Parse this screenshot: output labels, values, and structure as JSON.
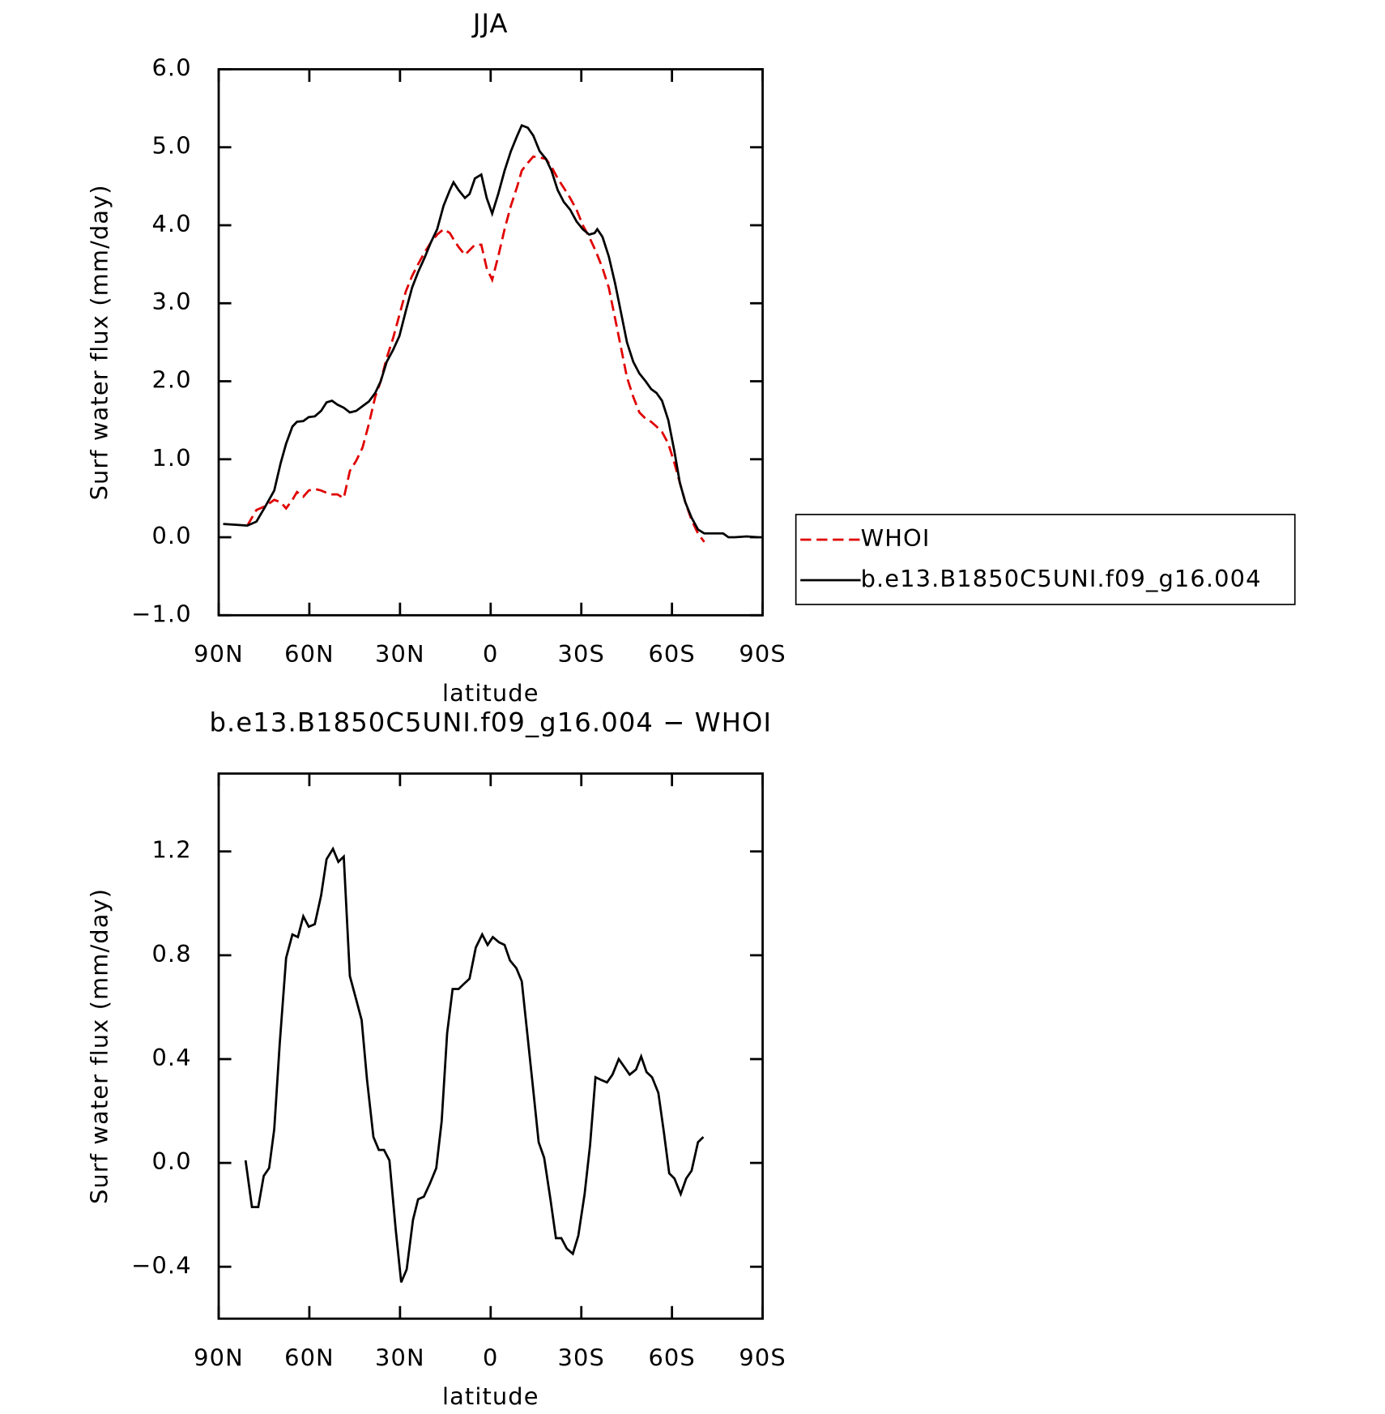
{
  "chart_data": [
    {
      "type": "line",
      "title": "JJA",
      "x_label": "latitude",
      "y_label": "Surf water flux (mm/day)",
      "x": [
        88.5,
        84.3,
        80.5,
        77.5,
        74.5,
        71.6,
        69.5,
        67.7,
        65.6,
        64.1,
        62,
        60.2,
        58.2,
        56.1,
        54.3,
        52.5,
        50.7,
        48.6,
        46.6,
        44.5,
        42.4,
        40.3,
        38.2,
        36.4,
        34.4,
        32.3,
        30.2,
        28.1,
        26,
        24,
        21.9,
        19.8,
        17.7,
        15.6,
        13.5,
        12.3,
        10.6,
        8.5,
        7,
        5.2,
        3.1,
        1.3,
        -0.5,
        -2.5,
        -4.6,
        -6.7,
        -8.8,
        -10.3,
        -12.3,
        -14.1,
        -16.2,
        -18.3,
        -20.1,
        -22.2,
        -24.2,
        -26.3,
        -28.4,
        -30.5,
        -32.6,
        -34.4,
        -35.3,
        -37,
        -39.1,
        -41.2,
        -43.3,
        -45.1,
        -47.2,
        -49.2,
        -51.3,
        -53.1,
        -54.9,
        -56.7,
        -58.8,
        -60.8,
        -62.6,
        -64.4,
        -66.5,
        -68.6,
        -70.7,
        -72.7,
        -74.8,
        -76.9,
        -78.7,
        -80.8,
        -84.7,
        -88.5
      ],
      "series": [
        {
          "name": "WHOI",
          "color": "#e00000",
          "dashed": true,
          "values": [
            null,
            null,
            0.15,
            0.35,
            0.4,
            0.48,
            0.45,
            0.37,
            0.48,
            0.58,
            0.52,
            0.6,
            0.62,
            0.6,
            0.57,
            0.55,
            0.55,
            0.5,
            0.85,
            0.98,
            1.15,
            1.45,
            1.8,
            2.0,
            2.3,
            2.55,
            2.85,
            3.15,
            3.35,
            3.5,
            3.65,
            3.78,
            3.88,
            3.95,
            3.9,
            3.82,
            3.72,
            3.62,
            3.68,
            3.75,
            3.75,
            3.45,
            3.3,
            3.6,
            3.95,
            4.25,
            4.5,
            4.7,
            4.8,
            4.88,
            4.87,
            4.85,
            4.75,
            4.6,
            4.48,
            4.35,
            4.2,
            4.0,
            3.85,
            3.7,
            3.62,
            3.45,
            3.2,
            2.8,
            2.4,
            2.05,
            1.8,
            1.6,
            1.52,
            1.48,
            1.42,
            1.35,
            1.2,
            0.95,
            0.7,
            0.45,
            0.22,
            0.05,
            -0.06,
            null,
            null,
            null,
            null,
            null,
            null,
            null
          ]
        },
        {
          "name": "b.e13.B1850C5UNI.f09_g16.004",
          "color": "#000000",
          "dashed": false,
          "values": [
            0.17,
            0.16,
            0.15,
            0.2,
            0.4,
            0.6,
            0.95,
            1.2,
            1.42,
            1.48,
            1.49,
            1.54,
            1.55,
            1.62,
            1.73,
            1.75,
            1.7,
            1.66,
            1.6,
            1.62,
            1.68,
            1.74,
            1.85,
            2.0,
            2.25,
            2.4,
            2.58,
            2.9,
            3.2,
            3.4,
            3.58,
            3.78,
            3.95,
            4.25,
            4.45,
            4.55,
            4.45,
            4.35,
            4.4,
            4.6,
            4.65,
            4.35,
            4.15,
            4.4,
            4.7,
            4.95,
            5.15,
            5.28,
            5.25,
            5.15,
            4.95,
            4.85,
            4.7,
            4.45,
            4.3,
            4.2,
            4.05,
            3.95,
            3.88,
            3.9,
            3.95,
            3.85,
            3.6,
            3.25,
            2.85,
            2.5,
            2.25,
            2.1,
            2.0,
            1.9,
            1.85,
            1.75,
            1.5,
            1.1,
            0.7,
            0.45,
            0.25,
            0.1,
            0.05,
            0.05,
            0.05,
            0.05,
            0.0,
            0.0,
            0.01,
            0.0
          ]
        }
      ],
      "xlim": [
        90,
        -90
      ],
      "xticks": [
        {
          "value": 90,
          "label": "90N"
        },
        {
          "value": 60,
          "label": "60N"
        },
        {
          "value": 30,
          "label": "30N"
        },
        0,
        {
          "value": -30,
          "label": "30S"
        },
        {
          "value": -60,
          "label": "60S"
        },
        {
          "value": -90,
          "label": "90S"
        }
      ],
      "ylim": [
        -1,
        6
      ],
      "yticks": [
        {
          "value": -1,
          "label": "−1.0"
        },
        {
          "value": 0,
          "label": "0.0"
        },
        {
          "value": 1,
          "label": "1.0"
        },
        {
          "value": 2,
          "label": "2.0"
        },
        {
          "value": 3,
          "label": "3.0"
        },
        {
          "value": 4,
          "label": "4.0"
        },
        {
          "value": 5,
          "label": "5.0"
        },
        {
          "value": 6,
          "label": "6.0"
        }
      ],
      "legend": "right"
    },
    {
      "type": "line",
      "title": "b.e13.B1850C5UNI.f09_g16.004 − WHOI",
      "x_label": "latitude",
      "y_label": "Surf water flux (mm/day)",
      "x": [
        81.1,
        79,
        76.9,
        75.1,
        73.3,
        71.6,
        69.8,
        67.7,
        65.6,
        63.8,
        62,
        60.2,
        58.2,
        56.1,
        54.3,
        52.2,
        50.4,
        48.6,
        46.6,
        44.5,
        42.7,
        40.9,
        38.8,
        37,
        35.3,
        33.5,
        31.4,
        29.6,
        27.8,
        25.7,
        24,
        22.1,
        20.1,
        18,
        16.2,
        14.4,
        12.6,
        10.6,
        8.8,
        7,
        4.9,
        2.8,
        1,
        -0.7,
        -2.8,
        -4.6,
        -6.4,
        -8.5,
        -10.3,
        -12.1,
        -14.1,
        -15.9,
        -17.7,
        -19.8,
        -21.6,
        -23.4,
        -25.2,
        -27.2,
        -29,
        -31.1,
        -32.9,
        -34.7,
        -36.5,
        -38.5,
        -40.3,
        -42.4,
        -44.2,
        -46,
        -48.1,
        -49.8,
        -51.6,
        -53.4,
        -55.5,
        -57.3,
        -59.1,
        -60.8,
        -62.9,
        -64.7,
        -66.5,
        -68.6,
        -70.4
      ],
      "series": [
        {
          "color": "#000000",
          "dashed": false,
          "values": [
            0.01,
            -0.17,
            -0.17,
            -0.05,
            -0.02,
            0.13,
            0.46,
            0.79,
            0.88,
            0.87,
            0.95,
            0.91,
            0.92,
            1.03,
            1.17,
            1.21,
            1.16,
            1.18,
            0.72,
            0.63,
            0.55,
            0.32,
            0.1,
            0.05,
            0.05,
            0.01,
            -0.26,
            -0.46,
            -0.41,
            -0.22,
            -0.14,
            -0.13,
            -0.08,
            -0.02,
            0.16,
            0.5,
            0.67,
            0.67,
            0.69,
            0.71,
            0.83,
            0.88,
            0.84,
            0.87,
            0.85,
            0.84,
            0.78,
            0.75,
            0.7,
            0.5,
            0.28,
            0.08,
            0.02,
            -0.14,
            -0.29,
            -0.29,
            -0.33,
            -0.35,
            -0.28,
            -0.12,
            0.07,
            0.33,
            0.32,
            0.31,
            0.34,
            0.4,
            0.37,
            0.34,
            0.36,
            0.41,
            0.35,
            0.33,
            0.27,
            0.12,
            -0.04,
            -0.06,
            -0.12,
            -0.06,
            -0.03,
            0.08,
            0.1
          ]
        }
      ],
      "xlim": [
        90,
        -90
      ],
      "xticks": [
        {
          "value": 90,
          "label": "90N"
        },
        {
          "value": 60,
          "label": "60N"
        },
        {
          "value": 30,
          "label": "30N"
        },
        0,
        {
          "value": -30,
          "label": "30S"
        },
        {
          "value": -60,
          "label": "60S"
        },
        {
          "value": -90,
          "label": "90S"
        }
      ],
      "ylim": [
        -0.6,
        1.5
      ],
      "yticks": [
        {
          "value": -0.4,
          "label": "−0.4"
        },
        {
          "value": 0,
          "label": "0.0"
        },
        0.4,
        0.8,
        1.2
      ]
    }
  ]
}
